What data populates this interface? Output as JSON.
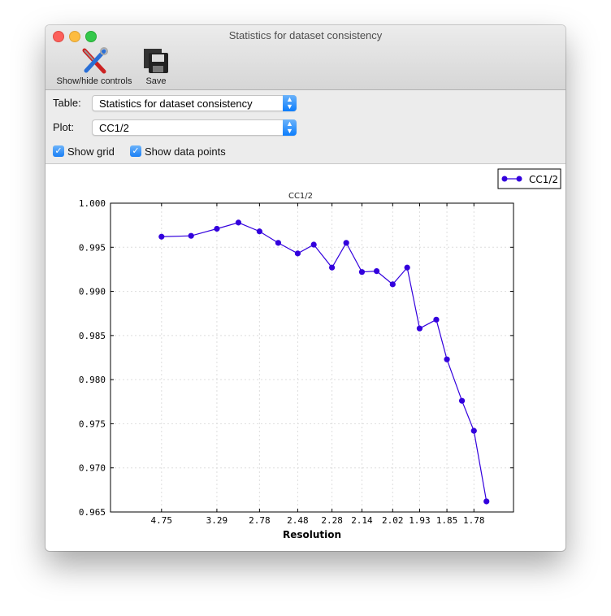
{
  "window": {
    "title": "Statistics for dataset consistency"
  },
  "toolbar": {
    "show_hide_label": "Show/hide controls",
    "save_label": "Save"
  },
  "controls": {
    "table_label": "Table:",
    "table_value": "Statistics for dataset consistency",
    "plot_label": "Plot:",
    "plot_value": "CC1/2",
    "show_grid_label": "Show grid",
    "show_grid_checked": true,
    "show_points_label": "Show data points",
    "show_points_checked": true
  },
  "colors": {
    "series": "#3300dd",
    "accent": "#1a7ff5"
  },
  "chart_data": {
    "type": "line",
    "title": "CC1/2",
    "xlabel": "Resolution",
    "ylabel": "",
    "x_scale": "reciprocal-square (1/d^2)",
    "ylim": [
      0.965,
      1.0
    ],
    "yticks": [
      "0.965",
      "0.970",
      "0.975",
      "0.980",
      "0.985",
      "0.990",
      "0.995",
      "1.000"
    ],
    "xticks": [
      "4.75",
      "3.29",
      "2.78",
      "2.48",
      "2.28",
      "2.14",
      "2.02",
      "1.93",
      "1.85",
      "1.78"
    ],
    "grid": true,
    "legend": "top-right",
    "series": [
      {
        "name": "CC1/2",
        "x": [
          4.75,
          3.78,
          3.29,
          3.0,
          2.78,
          2.62,
          2.48,
          2.38,
          2.28,
          2.21,
          2.14,
          2.08,
          2.02,
          1.97,
          1.93,
          1.88,
          1.85,
          1.81,
          1.78,
          1.75
        ],
        "y": [
          0.9962,
          0.9963,
          0.9971,
          0.9978,
          0.9968,
          0.9955,
          0.9943,
          0.9953,
          0.9927,
          0.9955,
          0.9922,
          0.9923,
          0.9908,
          0.9927,
          0.9858,
          0.9868,
          0.9823,
          0.9776,
          0.9742,
          0.9662
        ]
      }
    ]
  }
}
